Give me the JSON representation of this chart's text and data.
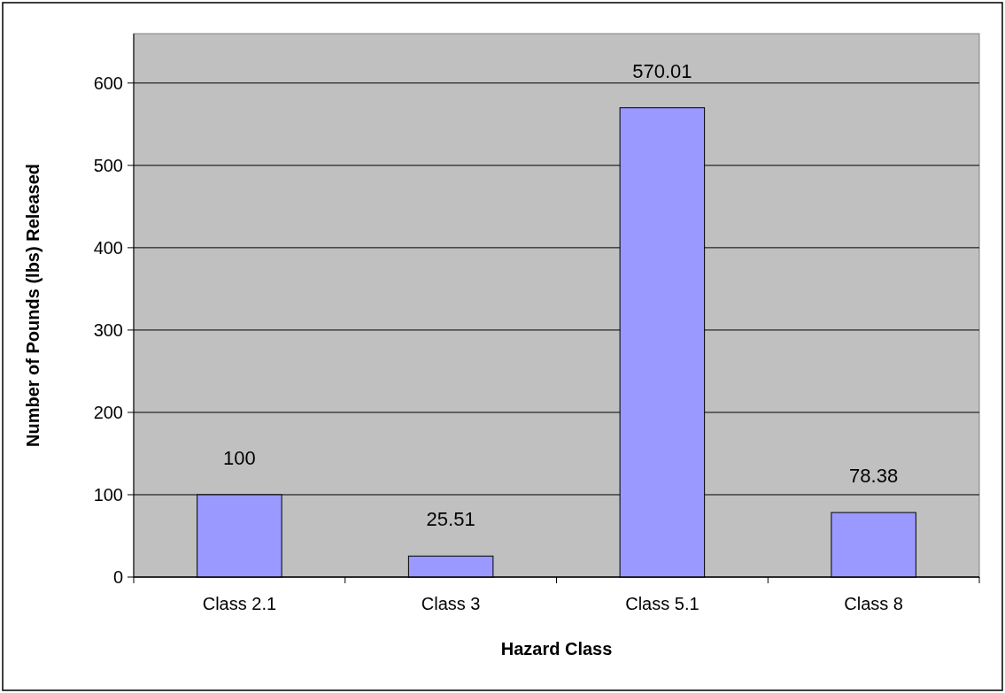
{
  "chart_data": {
    "type": "bar",
    "xlabel": "Hazard Class",
    "ylabel": "Number of Pounds (lbs) Released",
    "categories": [
      "Class 2.1",
      "Class 3",
      "Class 5.1",
      "Class 8"
    ],
    "values": [
      100,
      25.51,
      570.01,
      78.38
    ],
    "color": "#9999ff",
    "ylim": [
      0,
      660
    ],
    "yticks": [
      0,
      100,
      200,
      300,
      400,
      500,
      600
    ],
    "grid": "y",
    "data_labels": true
  }
}
